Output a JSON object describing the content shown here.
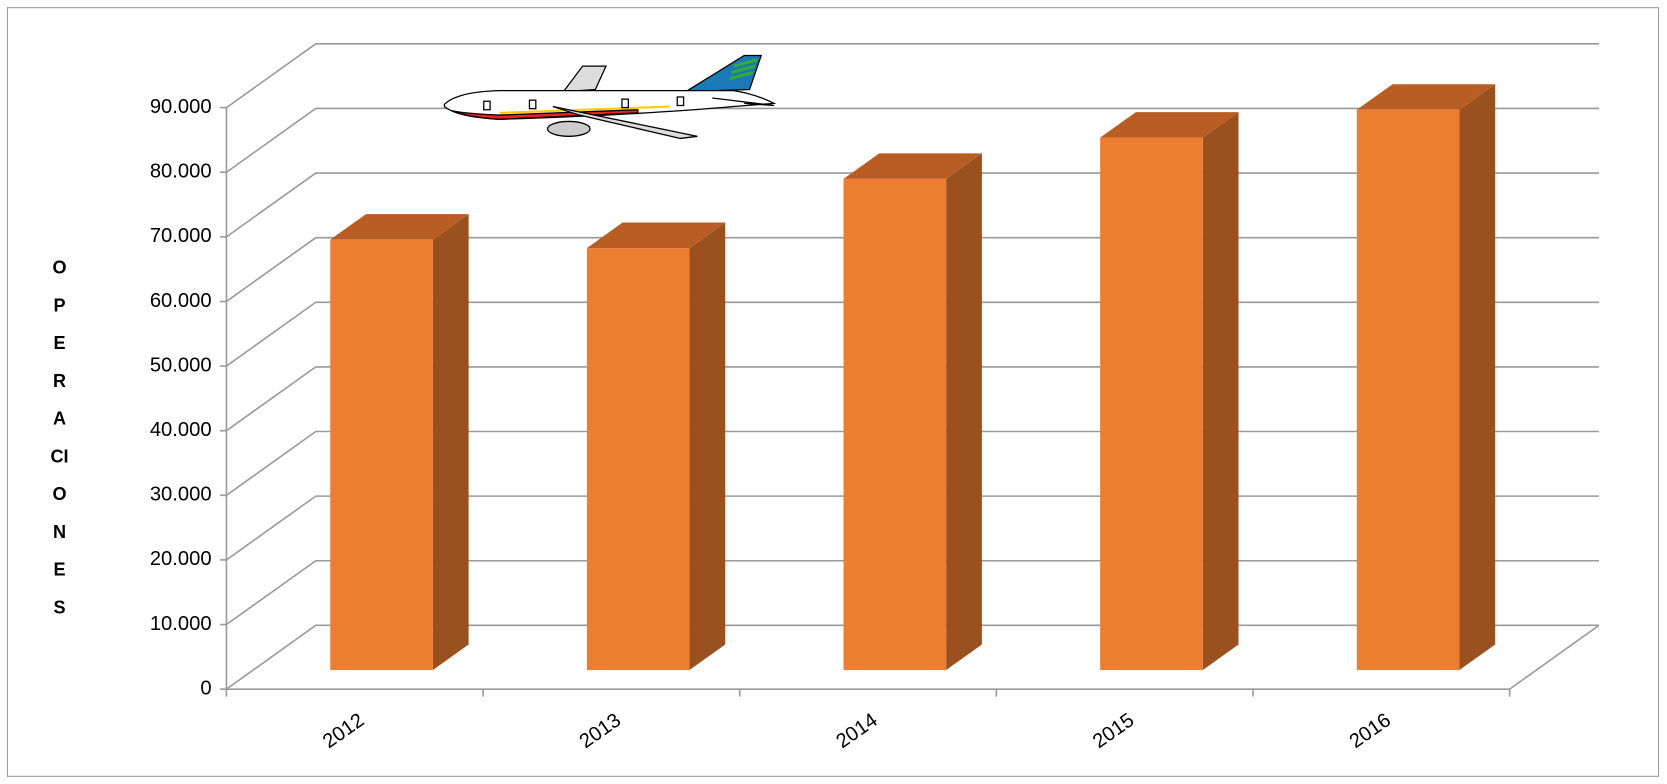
{
  "chart_data": {
    "type": "bar3d",
    "y_axis_label": "OPERACIONES",
    "categories": [
      "2012",
      "2013",
      "2014",
      "2015",
      "2016"
    ],
    "values": [
      66600,
      65300,
      76000,
      82400,
      86700
    ],
    "color": "#ed7d31",
    "ylim": [
      0,
      90000
    ],
    "yticks": [
      0,
      {
        "value": 10000,
        "label": "10.000"
      },
      {
        "value": 20000,
        "label": "20.000"
      },
      {
        "value": 30000,
        "label": "30.000"
      },
      {
        "value": 40000,
        "label": "40.000"
      },
      {
        "value": 50000,
        "label": "50.000"
      },
      {
        "value": 60000,
        "label": "60.000"
      },
      {
        "value": 70000,
        "label": "70.000"
      },
      {
        "value": 80000,
        "label": "80.000"
      },
      {
        "value": 90000,
        "label": "90.000"
      }
    ],
    "grid": true
  }
}
